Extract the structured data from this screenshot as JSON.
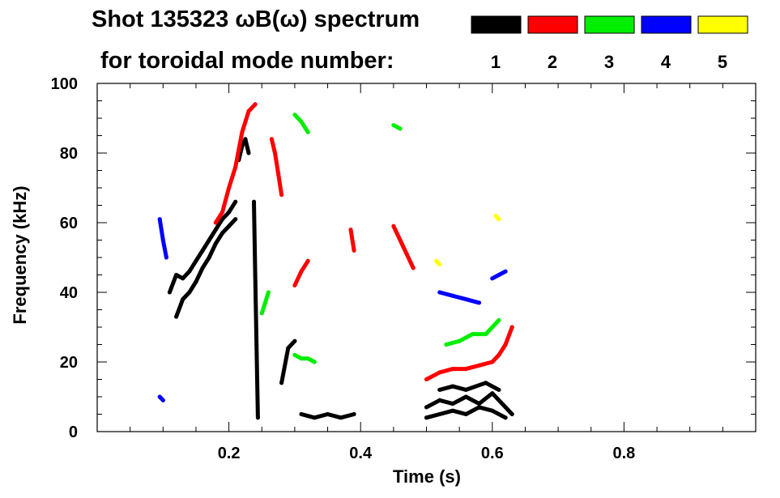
{
  "chart_data": {
    "type": "scatter",
    "title_line1": "Shot 135323 ωB(ω) spectrum",
    "title_line2": "for toroidal mode number:",
    "xlabel": "Time (s)",
    "ylabel": "Frequency (kHz)",
    "xlim": [
      0.0,
      1.0
    ],
    "ylim": [
      0,
      100
    ],
    "xticks": [
      0.2,
      0.4,
      0.6,
      0.8
    ],
    "xtick_labels": [
      "0.2",
      "0.4",
      "0.6",
      "0.8"
    ],
    "yticks": [
      0,
      20,
      40,
      60,
      80,
      100
    ],
    "ytick_labels": [
      "0",
      "20",
      "40",
      "60",
      "80",
      "100"
    ],
    "grid": false,
    "legend_placement": "top-right",
    "legend": [
      {
        "label": "1",
        "color": "#000000"
      },
      {
        "label": "2",
        "color": "#ff0000"
      },
      {
        "label": "3",
        "color": "#00ee00"
      },
      {
        "label": "4",
        "color": "#0000ff"
      },
      {
        "label": "5",
        "color": "#ffff00"
      }
    ],
    "series": [
      {
        "name": "n=1",
        "color": "#000000",
        "traces": [
          [
            [
              0.11,
              40
            ],
            [
              0.12,
              45
            ],
            [
              0.13,
              44
            ],
            [
              0.14,
              46
            ],
            [
              0.15,
              49
            ],
            [
              0.16,
              52
            ],
            [
              0.17,
              55
            ],
            [
              0.18,
              58
            ],
            [
              0.19,
              61
            ],
            [
              0.2,
              63
            ],
            [
              0.21,
              66
            ]
          ],
          [
            [
              0.12,
              33
            ],
            [
              0.13,
              38
            ],
            [
              0.14,
              40
            ],
            [
              0.15,
              43
            ],
            [
              0.16,
              47
            ],
            [
              0.17,
              50
            ],
            [
              0.18,
              54
            ],
            [
              0.19,
              57
            ],
            [
              0.2,
              59
            ],
            [
              0.21,
              61
            ]
          ],
          [
            [
              0.215,
              78
            ],
            [
              0.22,
              82
            ],
            [
              0.225,
              84
            ],
            [
              0.23,
              80
            ]
          ],
          [
            [
              0.238,
              66
            ],
            [
              0.24,
              45
            ],
            [
              0.242,
              25
            ],
            [
              0.244,
              4
            ]
          ],
          [
            [
              0.28,
              14
            ],
            [
              0.29,
              24
            ],
            [
              0.3,
              26
            ]
          ],
          [
            [
              0.31,
              5
            ],
            [
              0.33,
              4
            ],
            [
              0.35,
              5
            ],
            [
              0.37,
              4
            ],
            [
              0.39,
              5
            ]
          ],
          [
            [
              0.5,
              7
            ],
            [
              0.52,
              9
            ],
            [
              0.54,
              8
            ],
            [
              0.56,
              10
            ],
            [
              0.58,
              8
            ],
            [
              0.6,
              11
            ],
            [
              0.62,
              7
            ],
            [
              0.63,
              5
            ]
          ],
          [
            [
              0.5,
              4
            ],
            [
              0.52,
              5
            ],
            [
              0.54,
              6
            ],
            [
              0.56,
              5
            ],
            [
              0.58,
              7
            ],
            [
              0.6,
              6
            ],
            [
              0.62,
              4
            ]
          ],
          [
            [
              0.52,
              12
            ],
            [
              0.54,
              13
            ],
            [
              0.56,
              12
            ],
            [
              0.59,
              14
            ],
            [
              0.61,
              12
            ]
          ]
        ]
      },
      {
        "name": "n=2",
        "color": "#ff0000",
        "traces": [
          [
            [
              0.18,
              60
            ],
            [
              0.19,
              63
            ],
            [
              0.2,
              70
            ],
            [
              0.21,
              76
            ],
            [
              0.22,
              86
            ],
            [
              0.23,
              92
            ],
            [
              0.24,
              94
            ]
          ],
          [
            [
              0.265,
              84
            ],
            [
              0.27,
              80
            ],
            [
              0.275,
              74
            ],
            [
              0.28,
              68
            ]
          ],
          [
            [
              0.3,
              42
            ],
            [
              0.31,
              46
            ],
            [
              0.32,
              49
            ]
          ],
          [
            [
              0.45,
              59
            ],
            [
              0.46,
              55
            ],
            [
              0.47,
              51
            ],
            [
              0.48,
              47
            ]
          ],
          [
            [
              0.5,
              15
            ],
            [
              0.52,
              17
            ],
            [
              0.54,
              18
            ],
            [
              0.56,
              18
            ],
            [
              0.58,
              19
            ],
            [
              0.6,
              20
            ],
            [
              0.61,
              22
            ],
            [
              0.62,
              25
            ],
            [
              0.63,
              30
            ]
          ],
          [
            [
              0.385,
              58
            ],
            [
              0.39,
              52
            ]
          ]
        ]
      },
      {
        "name": "n=3",
        "color": "#00ee00",
        "traces": [
          [
            [
              0.3,
              91
            ],
            [
              0.31,
              89
            ],
            [
              0.32,
              86
            ]
          ],
          [
            [
              0.3,
              22
            ],
            [
              0.31,
              21
            ],
            [
              0.32,
              21
            ],
            [
              0.33,
              20
            ]
          ],
          [
            [
              0.53,
              25
            ],
            [
              0.55,
              26
            ],
            [
              0.57,
              28
            ],
            [
              0.59,
              28
            ],
            [
              0.61,
              32
            ]
          ],
          [
            [
              0.45,
              88
            ],
            [
              0.46,
              87
            ]
          ],
          [
            [
              0.25,
              34
            ],
            [
              0.26,
              40
            ]
          ]
        ]
      },
      {
        "name": "n=4",
        "color": "#0000ff",
        "traces": [
          [
            [
              0.095,
              61
            ],
            [
              0.1,
              55
            ],
            [
              0.105,
              50
            ]
          ],
          [
            [
              0.52,
              40
            ],
            [
              0.54,
              39
            ],
            [
              0.56,
              38
            ],
            [
              0.58,
              37
            ]
          ],
          [
            [
              0.6,
              44
            ],
            [
              0.61,
              45
            ],
            [
              0.62,
              46
            ]
          ],
          [
            [
              0.095,
              10
            ],
            [
              0.1,
              9
            ]
          ]
        ]
      },
      {
        "name": "n=5",
        "color": "#ffff00",
        "traces": [
          [
            [
              0.605,
              62
            ],
            [
              0.61,
              61
            ]
          ],
          [
            [
              0.515,
              49
            ],
            [
              0.52,
              48
            ]
          ]
        ]
      }
    ]
  }
}
